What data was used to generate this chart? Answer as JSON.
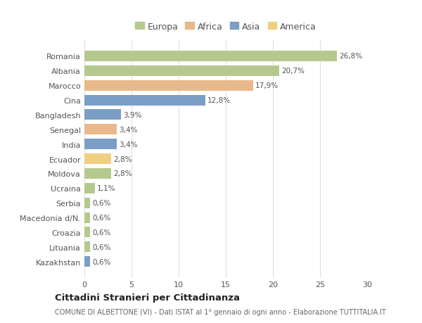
{
  "countries": [
    "Romania",
    "Albania",
    "Marocco",
    "Cina",
    "Bangladesh",
    "Senegal",
    "India",
    "Ecuador",
    "Moldova",
    "Ucraina",
    "Serbia",
    "Macedonia d/N.",
    "Croazia",
    "Lituania",
    "Kazakhstan"
  ],
  "values": [
    26.8,
    20.7,
    17.9,
    12.8,
    3.9,
    3.4,
    3.4,
    2.8,
    2.8,
    1.1,
    0.6,
    0.6,
    0.6,
    0.6,
    0.6
  ],
  "labels": [
    "26,8%",
    "20,7%",
    "17,9%",
    "12,8%",
    "3,9%",
    "3,4%",
    "3,4%",
    "2,8%",
    "2,8%",
    "1,1%",
    "0,6%",
    "0,6%",
    "0,6%",
    "0,6%",
    "0,6%"
  ],
  "continents": [
    "Europa",
    "Europa",
    "Africa",
    "Asia",
    "Asia",
    "Africa",
    "Asia",
    "America",
    "Europa",
    "Europa",
    "Europa",
    "Europa",
    "Europa",
    "Europa",
    "Asia"
  ],
  "colors": {
    "Europa": "#b5c98e",
    "Africa": "#e8b98a",
    "Asia": "#7b9ec6",
    "America": "#f0d080"
  },
  "bg_color": "#ffffff",
  "grid_color": "#e0e0e0",
  "title": "Cittadini Stranieri per Cittadinanza",
  "subtitle": "COMUNE DI ALBETTONE (VI) - Dati ISTAT al 1° gennaio di ogni anno - Elaborazione TUTTITALIA.IT",
  "xlim": [
    0,
    30
  ],
  "xticks": [
    0,
    5,
    10,
    15,
    20,
    25,
    30
  ],
  "bar_height": 0.72,
  "legend_order": [
    "Europa",
    "Africa",
    "Asia",
    "America"
  ]
}
